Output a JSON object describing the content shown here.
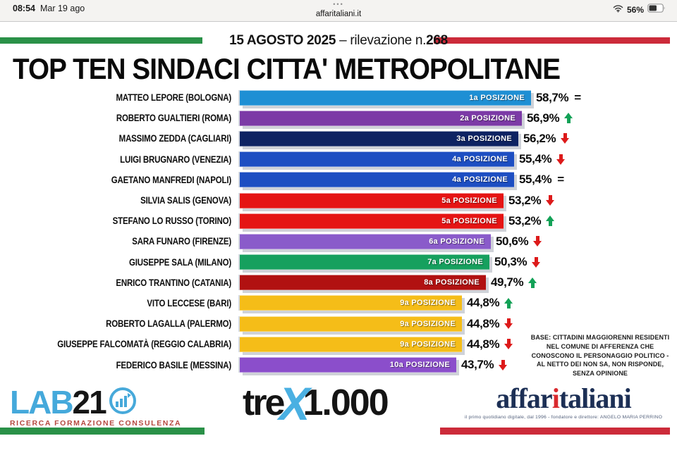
{
  "status_bar": {
    "time": "08:54",
    "date": "Mar 19 ago",
    "tabs_dots": "•••",
    "site": "affaritaliani.it",
    "battery_percent": "56%"
  },
  "header": {
    "survey_date": "15 AGOSTO 2025",
    "survey_sep": " – rilevazione n.",
    "survey_number": "268",
    "title": "TOP TEN SINDACI CITTA' METROPOLITANE",
    "tricolor_green": "#2a9148",
    "tricolor_red": "#cc2b3a"
  },
  "chart_data": {
    "type": "bar",
    "orientation": "horizontal",
    "title": "TOP TEN SINDACI CITTA' METROPOLITANE",
    "subtitle": "15 AGOSTO 2025 – rilevazione n.268",
    "unit": "%",
    "xlim": [
      0,
      60
    ],
    "grid": false,
    "legend": false,
    "rows": [
      {
        "name": "MATTEO LEPORE (BOLOGNA)",
        "value": 58.7,
        "value_label": "58,7%",
        "rank_label": "1a POSIZIONE",
        "trend": "same",
        "color": "#1e8fd4"
      },
      {
        "name": "ROBERTO GUALTIERI (ROMA)",
        "value": 56.9,
        "value_label": "56,9%",
        "rank_label": "2a POSIZIONE",
        "trend": "up",
        "color": "#7c3aa6"
      },
      {
        "name": "MASSIMO ZEDDA (CAGLIARI)",
        "value": 56.2,
        "value_label": "56,2%",
        "rank_label": "3a POSIZIONE",
        "trend": "down",
        "color": "#0e2362"
      },
      {
        "name": "LUIGI BRUGNARO (VENEZIA)",
        "value": 55.4,
        "value_label": "55,4%",
        "rank_label": "4a POSIZIONE",
        "trend": "down",
        "color": "#1d4ec2"
      },
      {
        "name": "GAETANO MANFREDI (NAPOLI)",
        "value": 55.4,
        "value_label": "55,4%",
        "rank_label": "4a POSIZIONE",
        "trend": "same",
        "color": "#1d4ec2"
      },
      {
        "name": "SILVIA SALIS (GENOVA)",
        "value": 53.2,
        "value_label": "53,2%",
        "rank_label": "5a POSIZIONE",
        "trend": "down",
        "color": "#e51414"
      },
      {
        "name": "STEFANO LO RUSSO (TORINO)",
        "value": 53.2,
        "value_label": "53,2%",
        "rank_label": "5a POSIZIONE",
        "trend": "up",
        "color": "#e51414"
      },
      {
        "name": "SARA FUNARO (FIRENZE)",
        "value": 50.6,
        "value_label": "50,6%",
        "rank_label": "6a POSIZIONE",
        "trend": "down",
        "color": "#8a5bca"
      },
      {
        "name": "GIUSEPPE SALA (MILANO)",
        "value": 50.3,
        "value_label": "50,3%",
        "rank_label": "7a POSIZIONE",
        "trend": "down",
        "color": "#16a05e"
      },
      {
        "name": "ENRICO TRANTINO (CATANIA)",
        "value": 49.7,
        "value_label": "49,7%",
        "rank_label": "8a POSIZIONE",
        "trend": "up",
        "color": "#b11111"
      },
      {
        "name": "VITO LECCESE (BARI)",
        "value": 44.8,
        "value_label": "44,8%",
        "rank_label": "9a POSIZIONE",
        "trend": "up",
        "color": "#f5bd18"
      },
      {
        "name": "ROBERTO LAGALLA (PALERMO)",
        "value": 44.8,
        "value_label": "44,8%",
        "rank_label": "9a POSIZIONE",
        "trend": "down",
        "color": "#f5bd18"
      },
      {
        "name": "GIUSEPPE FALCOMATÀ (REGGIO CALABRIA)",
        "value": 44.8,
        "value_label": "44,8%",
        "rank_label": "9a POSIZIONE",
        "trend": "down",
        "color": "#f5bd18"
      },
      {
        "name": "FEDERICO BASILE (MESSINA)",
        "value": 43.7,
        "value_label": "43,7%",
        "rank_label": "10a POSIZIONE",
        "trend": "down",
        "color": "#8b4ecb"
      }
    ],
    "trend_colors": {
      "up": "#12a156",
      "down": "#dd1a1a",
      "same": "#111111"
    }
  },
  "note": {
    "text": "BASE: CITTADINI MAGGIORENNI RESIDENTI NEL COMUNE DI AFFERENZA CHE CONOSCONO IL PERSONAGGIO POLITICO - AL NETTO DEI NON SA, NON RISPONDE, SENZA OPINIONE"
  },
  "footer": {
    "lab21": {
      "lab": "LAB",
      "num": "21",
      "tagline": "RICERCA FORMAZIONE CONSULENZA"
    },
    "trex": {
      "pre": "tre",
      "x": "X",
      "post": "1.000"
    },
    "affaritaliani": {
      "part1": "affar",
      "accent": "i",
      "part2": "taliani",
      "tagline": "il primo quotidiano digitale, dal 1996 - fondatore e direttore: ANGELO MARIA PERRINO"
    }
  }
}
